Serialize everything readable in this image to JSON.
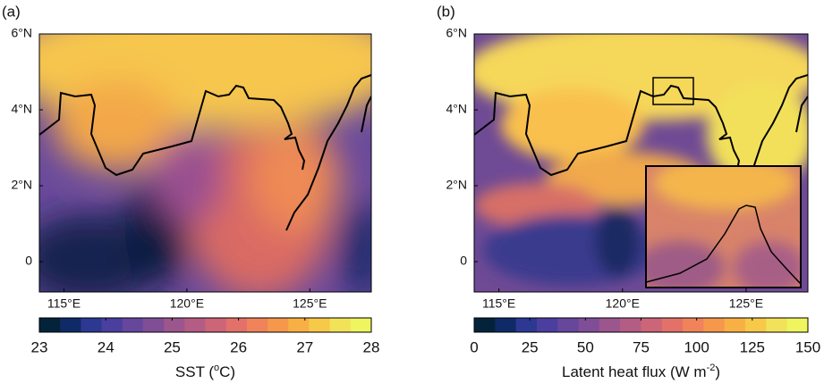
{
  "panels": [
    {
      "label": "(a)",
      "xlim": [
        114,
        127.5
      ],
      "ylim": [
        -0.8,
        6
      ],
      "xticks": [
        {
          "value": 115,
          "label": "115°E"
        },
        {
          "value": 120,
          "label": "120°E"
        },
        {
          "value": 125,
          "label": "125°E"
        }
      ],
      "yticks": [
        {
          "value": 6,
          "label": "6°N"
        },
        {
          "value": 4,
          "label": "4°N"
        },
        {
          "value": 2,
          "label": "2°N"
        },
        0
      ],
      "colorbar": {
        "lim": [
          23,
          28
        ],
        "ticks": [
          23,
          24,
          25,
          26,
          27,
          28
        ],
        "label": {
          "text": "SST (",
          "sup": "o",
          "after": "C)"
        }
      }
    },
    {
      "label": "(b)",
      "xlim": [
        114,
        127.5
      ],
      "ylim": [
        -0.8,
        6
      ],
      "xticks": [
        {
          "value": 115,
          "label": "115°E"
        },
        {
          "value": 120,
          "label": "120°E"
        },
        {
          "value": 125,
          "label": "125°E"
        }
      ],
      "yticks": [
        {
          "value": 6,
          "label": "6°N"
        },
        {
          "value": 4,
          "label": "4°N"
        },
        {
          "value": 2,
          "label": "2°N"
        },
        0
      ],
      "colorbar": {
        "lim": [
          0,
          150
        ],
        "ticks": [
          0,
          25,
          50,
          75,
          100,
          125,
          150
        ],
        "label": {
          "text": "Latent heat flux (W m",
          "sup": "-2",
          "after": ")"
        }
      }
    }
  ]
}
